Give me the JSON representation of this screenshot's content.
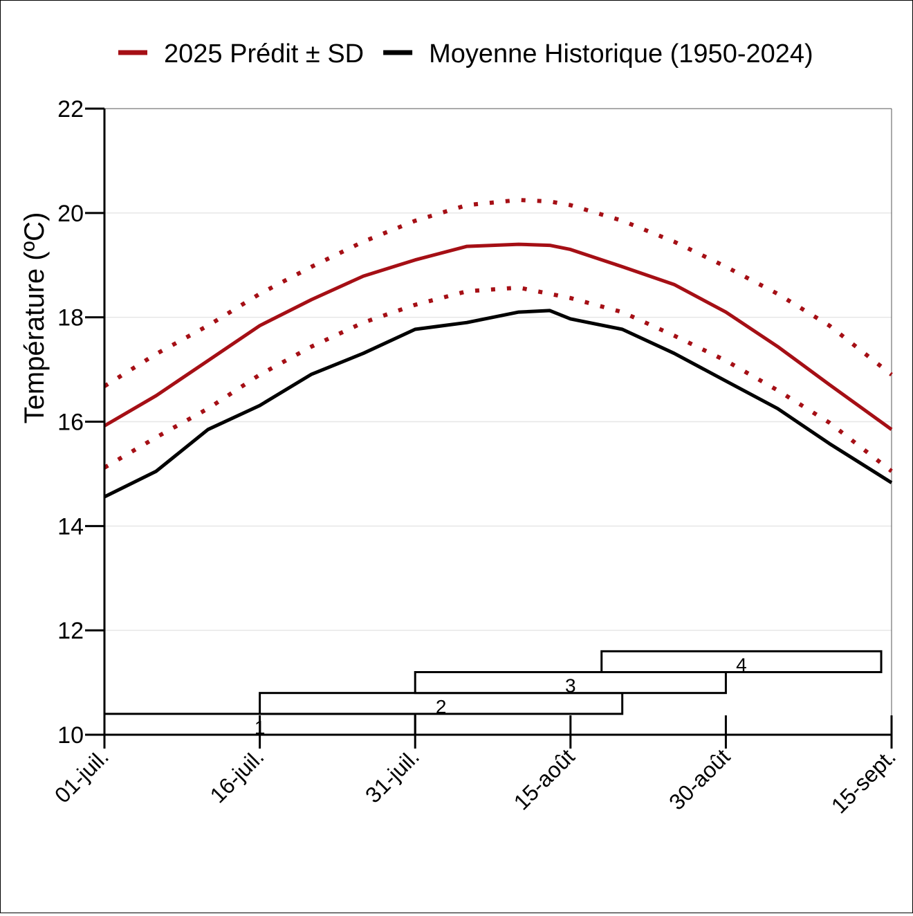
{
  "chart_data": {
    "type": "line",
    "title": "",
    "xlabel": "",
    "ylabel": "Température (ºC)",
    "ylim": [
      10,
      22
    ],
    "yticks": [
      10,
      12,
      14,
      16,
      18,
      20,
      22
    ],
    "xlim": [
      "07-01",
      "09-15"
    ],
    "xticks": [
      {
        "date": "07-01",
        "label": "01-juil."
      },
      {
        "date": "07-16",
        "label": "16-juil."
      },
      {
        "date": "07-31",
        "label": "31-juil."
      },
      {
        "date": "08-15",
        "label": "15-août"
      },
      {
        "date": "08-30",
        "label": "30-août"
      },
      {
        "date": "09-15",
        "label": "15-sept."
      }
    ],
    "grid": "horizontal",
    "legend_position": "top",
    "x": [
      "07-01",
      "07-06",
      "07-11",
      "07-16",
      "07-21",
      "07-26",
      "07-31",
      "08-05",
      "08-10",
      "08-13",
      "08-15",
      "08-20",
      "08-25",
      "08-30",
      "09-04",
      "09-09",
      "09-15"
    ],
    "series": [
      {
        "name": "2025 Prédit ± SD",
        "color": "#a50f15",
        "style": "solid",
        "values": [
          15.92,
          16.5,
          17.17,
          17.84,
          18.34,
          18.79,
          19.1,
          19.36,
          19.4,
          19.38,
          19.3,
          18.97,
          18.63,
          18.1,
          17.44,
          16.71,
          15.85
        ]
      },
      {
        "name": "",
        "color": "#a50f15",
        "style": "dotted",
        "values": [
          16.68,
          17.3,
          17.84,
          18.45,
          18.97,
          19.45,
          19.85,
          20.15,
          20.25,
          20.22,
          20.15,
          19.85,
          19.45,
          18.97,
          18.45,
          17.84,
          16.9
        ]
      },
      {
        "name": "",
        "color": "#a50f15",
        "style": "dotted",
        "values": [
          15.12,
          15.7,
          16.25,
          16.9,
          17.44,
          17.9,
          18.24,
          18.5,
          18.57,
          18.45,
          18.37,
          18.1,
          17.65,
          17.17,
          16.6,
          15.98,
          15.05
        ]
      },
      {
        "name": "Moyenne Historique (1950-2024)",
        "color": "#000000",
        "style": "solid",
        "values": [
          14.56,
          15.05,
          15.85,
          16.31,
          16.91,
          17.31,
          17.77,
          17.9,
          18.1,
          18.13,
          17.97,
          17.77,
          17.31,
          16.78,
          16.25,
          15.58,
          14.83
        ]
      }
    ],
    "periods": [
      {
        "label": "1",
        "start": "07-01",
        "end": "07-31",
        "ymin": 10.0,
        "ymax": 10.4
      },
      {
        "label": "2",
        "start": "07-16",
        "end": "08-20",
        "ymin": 10.4,
        "ymax": 10.8
      },
      {
        "label": "3",
        "start": "07-31",
        "end": "08-30",
        "ymin": 10.8,
        "ymax": 11.2
      },
      {
        "label": "4",
        "start": "08-18",
        "end": "09-14",
        "ymin": 11.2,
        "ymax": 11.6
      }
    ]
  }
}
